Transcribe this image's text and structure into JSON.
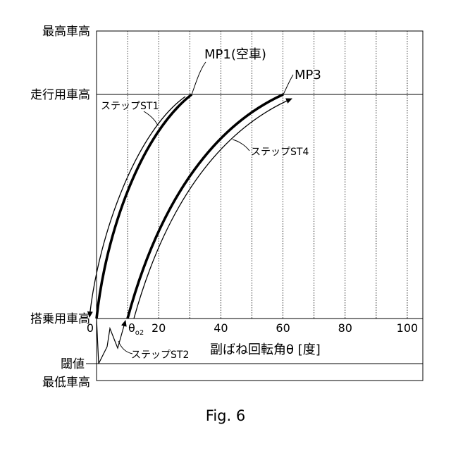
{
  "chart_data": {
    "type": "line",
    "figure_caption": "Fig. 6",
    "xlabel": "副ばね回転角θ [度]",
    "ylabel": "",
    "xlim": [
      0,
      105
    ],
    "x_ticks": [
      0,
      20,
      40,
      60,
      80,
      100
    ],
    "x_tick_labels": [
      "0",
      "20",
      "40",
      "60",
      "80",
      "100"
    ],
    "x_minor_gridlines": [
      10,
      30,
      50,
      70,
      90
    ],
    "special_x_label": {
      "text": "θ",
      "sub": "o2"
    },
    "y_levels": [
      {
        "key": "max",
        "label": "最高車高"
      },
      {
        "key": "travel",
        "label": "走行用車高"
      },
      {
        "key": "ride",
        "label": "搭乗用車高"
      },
      {
        "key": "threshold",
        "label": "閾値"
      },
      {
        "key": "min",
        "label": "最低車高"
      }
    ],
    "annotations": {
      "mp1": "MP1(空車)",
      "mp3": "MP3",
      "st1": "ステップST1",
      "st2": "ステップST2",
      "st4": "ステップST4"
    },
    "series": [
      {
        "id": "st1",
        "x": [
          0,
          2,
          5,
          10,
          15,
          20,
          25,
          30
        ],
        "y_level": [
          "ride",
          "",
          "",
          "",
          "",
          "",
          "",
          "travel"
        ]
      },
      {
        "id": "st4",
        "x": [
          10,
          15,
          25,
          35,
          45,
          55,
          63
        ],
        "y_level": [
          "ride",
          "",
          "",
          "",
          "",
          "",
          "travel"
        ]
      }
    ],
    "grid": true,
    "legend": "none"
  }
}
